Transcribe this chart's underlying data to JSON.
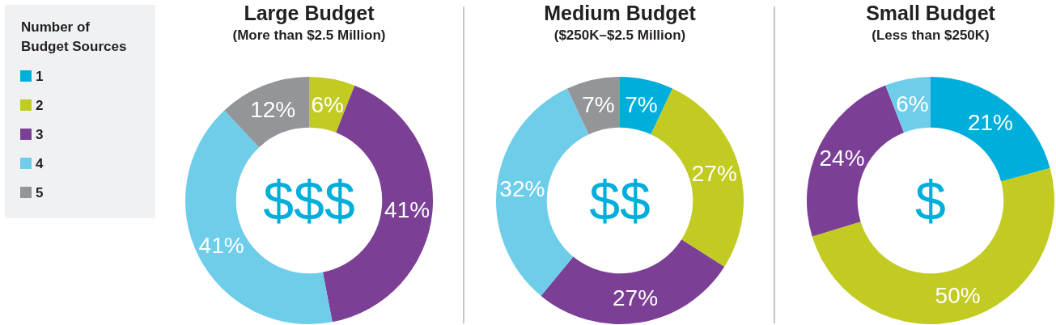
{
  "chart_data": [
    {
      "type": "donut",
      "title": "Large Budget",
      "subtitle": "(More than $2.5 Million)",
      "categories": [
        "1",
        "2",
        "3",
        "4",
        "5"
      ],
      "values": [
        0,
        6,
        41,
        41,
        12
      ],
      "colors": [
        "#00aedb",
        "#c1cb21",
        "#7b3f96",
        "#6ecde9",
        "#939598"
      ],
      "value_labels": [
        null,
        "6%",
        "41%",
        "41%",
        "12%"
      ],
      "annotations": [
        "$$$"
      ],
      "legend": "left",
      "legend_title": "Number of Budget Sources"
    },
    {
      "type": "donut",
      "title": "Medium Budget",
      "subtitle": "($250K–$2.5 Million)",
      "categories": [
        null,
        null,
        null,
        null,
        null
      ],
      "values": [
        7,
        27,
        27,
        32,
        7
      ],
      "colors": [
        "#00aedb",
        "#c1cb21",
        "#7b3f96",
        "#6ecde9",
        "#939598"
      ],
      "value_labels": [
        "7%",
        "27%",
        "27%",
        "32%",
        "7%"
      ],
      "annotations": [
        "$$"
      ]
    },
    {
      "type": "donut",
      "title": "Small Budget",
      "subtitle": "(Less than $250K)",
      "categories": [
        null,
        null,
        null,
        null
      ],
      "values": [
        21,
        50,
        24,
        6
      ],
      "colors": [
        "#00aedb",
        "#c1cb21",
        "#7b3f96",
        "#6ecde9"
      ],
      "value_labels": [
        "21%",
        "50%",
        "24%",
        "6%"
      ],
      "annotations": [
        "$"
      ]
    }
  ]
}
